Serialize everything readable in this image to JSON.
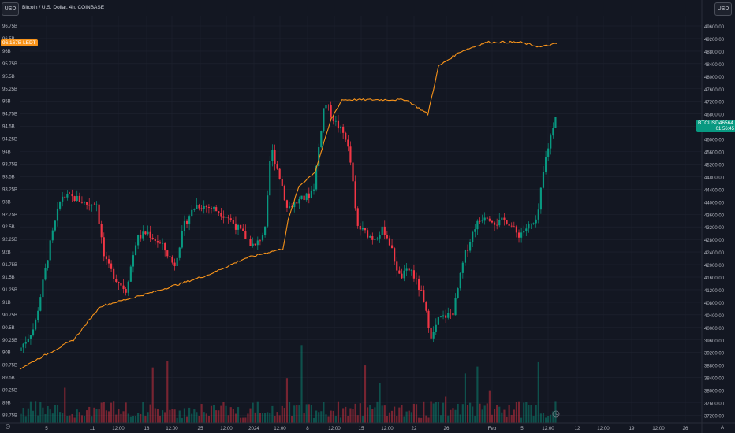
{
  "toolbar": {
    "left_currency_button": "USD",
    "right_currency_button": "USD",
    "symbol_title": "Bitcoin / U.S. Dollar, 4h, COINBASE"
  },
  "left_axis": {
    "ticks": [
      "96.75B",
      "96.5B",
      "96B",
      "95.75B",
      "95.5B",
      "95.25B",
      "95B",
      "94.75B",
      "94.5B",
      "94.25B",
      "94B",
      "93.75B",
      "93.5B",
      "93.25B",
      "93B",
      "92.75B",
      "92.5B",
      "92.25B",
      "92B",
      "91.75B",
      "91.5B",
      "91.25B",
      "91B",
      "90.75B",
      "90.5B",
      "90.25B",
      "90B",
      "89.75B",
      "89.5B",
      "89.25B",
      "89B",
      "88.75B"
    ]
  },
  "left_price_tag": "96.167B  LEDT",
  "right_axis": {
    "ticks": [
      "49600.00",
      "49200.00",
      "48800.00",
      "48400.00",
      "48000.00",
      "47600.00",
      "47200.00",
      "46800.00",
      "46400.00",
      "46000.00",
      "45600.00",
      "45200.00",
      "44800.00",
      "44400.00",
      "44000.00",
      "43600.00",
      "43200.00",
      "42800.00",
      "42400.00",
      "42000.00",
      "41600.00",
      "41200.00",
      "40800.00",
      "40400.00",
      "40000.00",
      "39600.00",
      "39200.00",
      "38800.00",
      "38400.00",
      "38000.00",
      "37600.00",
      "37200.00"
    ]
  },
  "current_price_tag": {
    "symbol": "BTCUSD",
    "price": "46564.23",
    "countdown": "01:56:45"
  },
  "x_axis": {
    "ticks": [
      "5",
      "11",
      "12:00",
      "18",
      "12:00",
      "25",
      "12:00",
      "2024",
      "12:00",
      "8",
      "12:00",
      "15",
      "12:00",
      "22",
      "26",
      "Feb",
      "5",
      "12:00",
      "12",
      "12:00",
      "19",
      "12:00",
      "26"
    ]
  },
  "colors": {
    "background": "#131722",
    "up": "#089981",
    "down": "#f23645",
    "overlay_line": "#f7931a",
    "grid": "#1f2330"
  },
  "icons": {
    "settings": "gear-icon",
    "goto_realtime": "clock-icon",
    "auto_scale": "auto-scale-icon"
  },
  "chart_data": {
    "type": "candlestick",
    "symbol": "BTCUSD",
    "interval": "4h",
    "exchange": "COINBASE",
    "price_axis": {
      "ylim": [
        37200,
        49800
      ]
    },
    "overlay_axis": {
      "ylim": [
        88.75,
        96.75
      ],
      "unit": "B"
    },
    "last_price": 46564.23,
    "overlay_last_value": 96.167,
    "price_path": [
      [
        0,
        38800
      ],
      [
        0.03,
        39600
      ],
      [
        0.06,
        42400
      ],
      [
        0.08,
        43900
      ],
      [
        0.11,
        43800
      ],
      [
        0.13,
        43600
      ],
      [
        0.145,
        43700
      ],
      [
        0.16,
        41800
      ],
      [
        0.18,
        41200
      ],
      [
        0.2,
        40800
      ],
      [
        0.22,
        42500
      ],
      [
        0.24,
        42700
      ],
      [
        0.27,
        42200
      ],
      [
        0.29,
        41600
      ],
      [
        0.31,
        43000
      ],
      [
        0.33,
        43600
      ],
      [
        0.36,
        43500
      ],
      [
        0.39,
        43200
      ],
      [
        0.42,
        42600
      ],
      [
        0.44,
        42200
      ],
      [
        0.46,
        42800
      ],
      [
        0.47,
        45500
      ],
      [
        0.49,
        44300
      ],
      [
        0.5,
        43500
      ],
      [
        0.52,
        43700
      ],
      [
        0.54,
        43900
      ],
      [
        0.55,
        44200
      ],
      [
        0.57,
        47000
      ],
      [
        0.59,
        46300
      ],
      [
        0.61,
        45800
      ],
      [
        0.62,
        44800
      ],
      [
        0.63,
        42900
      ],
      [
        0.66,
        42500
      ],
      [
        0.68,
        42800
      ],
      [
        0.69,
        42400
      ],
      [
        0.71,
        41200
      ],
      [
        0.73,
        41500
      ],
      [
        0.75,
        40700
      ],
      [
        0.77,
        39200
      ],
      [
        0.78,
        39800
      ],
      [
        0.81,
        40100
      ],
      [
        0.83,
        41900
      ],
      [
        0.85,
        42900
      ],
      [
        0.87,
        43300
      ],
      [
        0.89,
        43000
      ],
      [
        0.91,
        43100
      ],
      [
        0.93,
        42600
      ],
      [
        0.95,
        42900
      ],
      [
        0.965,
        43000
      ],
      [
        0.98,
        45000
      ],
      [
        1.0,
        46560
      ]
    ],
    "overlay_path": [
      [
        0,
        89.4
      ],
      [
        0.1,
        90.0
      ],
      [
        0.15,
        90.7
      ],
      [
        0.25,
        91.0
      ],
      [
        0.35,
        91.35
      ],
      [
        0.42,
        91.7
      ],
      [
        0.49,
        91.9
      ],
      [
        0.5,
        92.5
      ],
      [
        0.52,
        93.2
      ],
      [
        0.55,
        93.5
      ],
      [
        0.58,
        94.6
      ],
      [
        0.6,
        95.0
      ],
      [
        0.65,
        95.0
      ],
      [
        0.72,
        95.0
      ],
      [
        0.76,
        94.7
      ],
      [
        0.78,
        95.7
      ],
      [
        0.82,
        96.0
      ],
      [
        0.87,
        96.2
      ],
      [
        0.93,
        96.2
      ],
      [
        0.97,
        96.1
      ],
      [
        1.0,
        96.17
      ]
    ]
  }
}
